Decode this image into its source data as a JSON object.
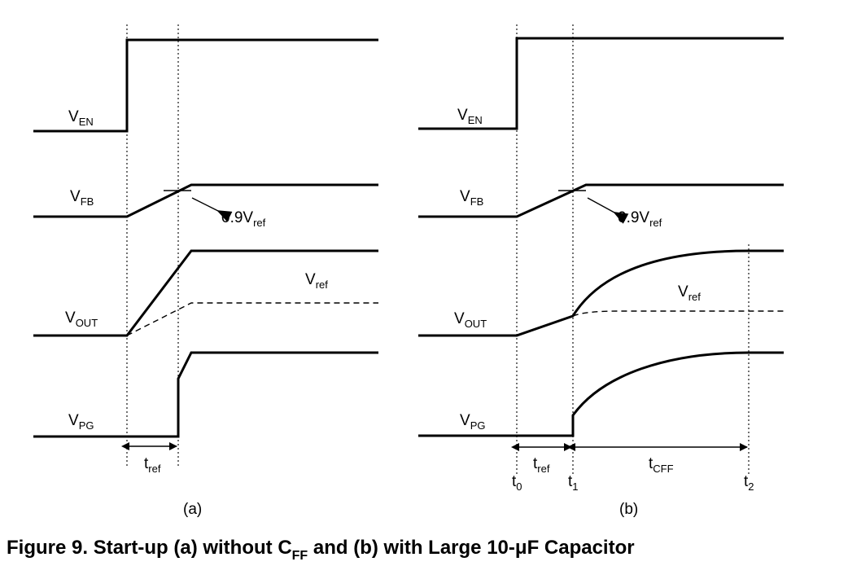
{
  "labels": {
    "v": "V",
    "en": "EN",
    "fb": "FB",
    "out": "OUT",
    "pg": "PG",
    "ref_prefix": "0.9V",
    "ref_sub": "ref",
    "t": "t",
    "t_ref_sub": "ref",
    "t_cff_sub": "CFF",
    "t0_sub": "0",
    "t1_sub": "1",
    "t2_sub": "2"
  },
  "panels": {
    "a": "(a)",
    "b": "(b)"
  },
  "caption": {
    "part1": "Figure 9. Start-up (a) without C",
    "sub": "FF",
    "part2": " and (b) with Large 10-μF Capacitor"
  }
}
